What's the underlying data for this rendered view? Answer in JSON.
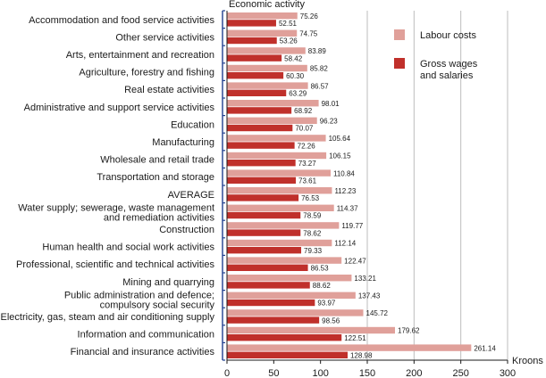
{
  "chart_data": {
    "type": "bar",
    "orientation": "horizontal",
    "title": "",
    "ylabel": "Economic activity",
    "xlabel": "Kroons",
    "xlim": [
      0,
      300
    ],
    "xticks": [
      0,
      50,
      100,
      150,
      200,
      250,
      300
    ],
    "grid": "vertical, from 150 onward",
    "legend_position": "top-right",
    "categories": [
      "Accommodation and food service activities",
      "Other service activities",
      "Arts, entertainment and recreation",
      "Agriculture, forestry and fishing",
      "Real estate activities",
      "Administrative and support service activities",
      "Education",
      "Manufacturing",
      "Wholesale and retail trade",
      "Transportation and storage",
      "AVERAGE",
      "Water supply; sewerage, waste management\nand remediation activities",
      "Construction",
      "Human health and social work activities",
      "Professional, scientific and technical activities",
      "Mining and quarrying",
      "Public administration and defence;\ncompulsory social security",
      "Electricity, gas, steam and air conditioning supply",
      "Information and communication",
      "Financial and insurance activities"
    ],
    "series": [
      {
        "name": "Labour costs",
        "color": "#e0a09a",
        "values": [
          75.26,
          74.75,
          83.89,
          85.82,
          86.57,
          98.01,
          96.23,
          105.64,
          106.15,
          110.84,
          112.23,
          114.37,
          119.77,
          112.14,
          122.47,
          133.21,
          137.43,
          145.72,
          179.62,
          261.14
        ],
        "labels": [
          "75.26",
          "74.75",
          "83.89",
          "85.82",
          "86.57",
          "98.01",
          "96.23",
          "105.64",
          "106.15",
          "110.84",
          "112.23",
          "114.37",
          "119.77",
          "112.14",
          "122.47",
          "133.21",
          "137.43",
          "145.72",
          "179.62",
          "261.14"
        ]
      },
      {
        "name": "Gross wages\nand salaries",
        "color": "#c0302b",
        "values": [
          52.51,
          53.26,
          58.42,
          60.3,
          63.29,
          68.92,
          70.07,
          72.26,
          73.27,
          73.61,
          76.53,
          78.59,
          78.62,
          79.33,
          86.53,
          88.62,
          93.97,
          98.56,
          122.51,
          128.98
        ],
        "labels": [
          "52.51",
          "53.26",
          "58.42",
          "60.30",
          "63.29",
          "68.92",
          "70.07",
          "72.26",
          "73.27",
          "73.61",
          "76.53",
          "78.59",
          "78.62",
          "79.33",
          "86.53",
          "88.62",
          "93.97",
          "98.56",
          "122.51",
          "128.98"
        ]
      }
    ]
  }
}
